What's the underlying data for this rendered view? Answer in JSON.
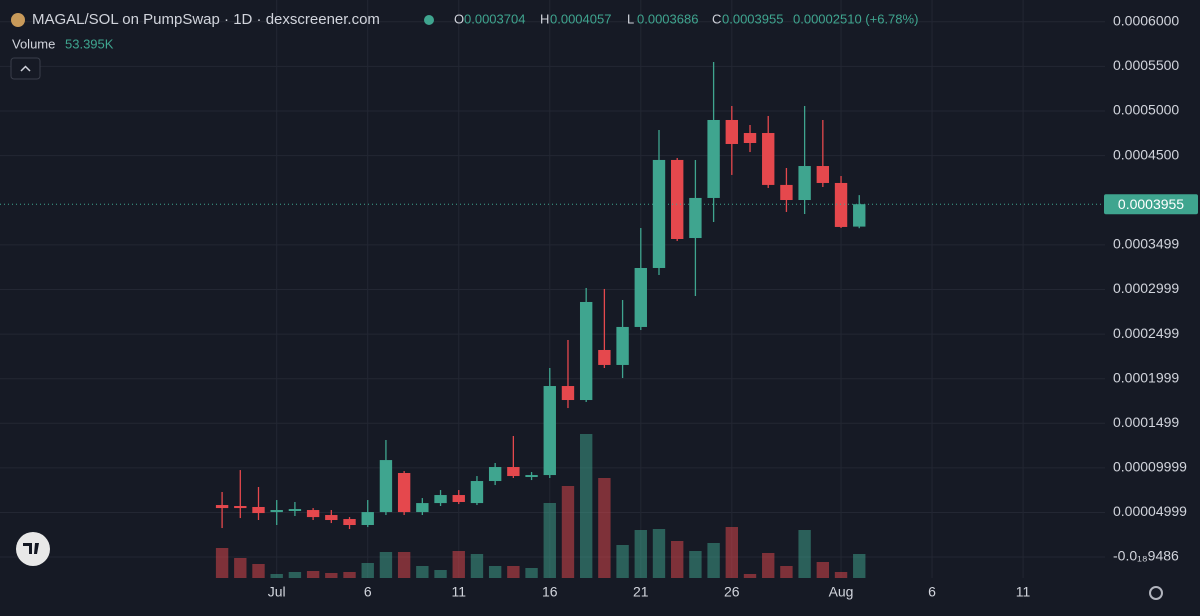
{
  "chart_data": {
    "type": "candlestick",
    "title": "MAGAL/SOL on PumpSwap · 1D · dexscreener.com",
    "ohlc_letters": [
      "O",
      "H",
      "L",
      "C"
    ],
    "change": "0.00002510 (+6.78%)",
    "volume_legend": {
      "label": "Volume",
      "value": "53.395K"
    },
    "x": [
      -2,
      -1,
      0,
      1,
      2,
      3,
      4,
      5,
      6,
      7,
      8,
      9,
      10,
      11,
      12,
      13,
      14,
      15,
      16,
      17,
      18,
      19,
      20,
      21,
      22,
      23,
      24,
      25,
      26,
      27,
      28,
      29,
      30,
      31,
      32,
      33
    ],
    "open": [
      5.83e-05,
      5.72e-05,
      5.61e-05,
      5.04e-05,
      5.16e-05,
      5.27e-05,
      4.71e-05,
      4.26e-05,
      3.59e-05,
      5.04e-05,
      9.42e-05,
      5.04e-05,
      6.05e-05,
      6.95e-05,
      6.05e-05,
      8.52e-05,
      0.0001009,
      8.97e-05,
      9.19e-05,
      0.0001917,
      0.000176,
      0.0002321,
      0.0002153,
      0.0002579,
      0.000324,
      0.0004451,
      0.0003576,
      0.0004025,
      0.0004899,
      0.0004753,
      0.0004753,
      0.0004171,
      0.0004002,
      0.0004383,
      0.0004193,
      0.0003704
    ],
    "high": [
      7.29e-05,
      9.75e-05,
      7.85e-05,
      6.39e-05,
      6.17e-05,
      5.49e-05,
      5.27e-05,
      4.48e-05,
      6.39e-05,
      0.0001312,
      9.64e-05,
      6.61e-05,
      7.51e-05,
      7.51e-05,
      9.08e-05,
      0.0001054,
      0.0001357,
      9.53e-05,
      0.0002119,
      0.0002433,
      0.0003016,
      0.0003005,
      0.0002881,
      0.0003688,
      0.0004787,
      0.0004473,
      0.0004451,
      0.0005549,
      0.0005056,
      0.0004843,
      0.0004944,
      0.0004361,
      0.0005056,
      0.0004899,
      0.0004271,
      0.0004057
    ],
    "low": [
      3.25e-05,
      4.37e-05,
      4.15e-05,
      3.59e-05,
      4.6e-05,
      4.15e-05,
      3.81e-05,
      3.14e-05,
      3.36e-05,
      4.71e-05,
      4.71e-05,
      4.71e-05,
      5.72e-05,
      5.94e-05,
      5.83e-05,
      8.07e-05,
      8.86e-05,
      8.63e-05,
      8.86e-05,
      0.000167,
      0.0001738,
      0.0002119,
      0.0002007,
      0.0002545,
      0.0003162,
      0.0003543,
      0.0002926,
      0.0003756,
      0.0004283,
      0.000454,
      0.0004137,
      0.0003868,
      0.0003845,
      0.0004148,
      0.0003688,
      0.0003686
    ],
    "close": [
      5.49e-05,
      5.49e-05,
      4.93e-05,
      5.27e-05,
      5.38e-05,
      4.48e-05,
      4.15e-05,
      3.59e-05,
      5.04e-05,
      0.0001087,
      5.04e-05,
      6.05e-05,
      6.95e-05,
      6.17e-05,
      8.52e-05,
      0.0001009,
      9.08e-05,
      9.19e-05,
      0.0001917,
      0.000176,
      0.0002859,
      0.0002153,
      0.0002579,
      0.000324,
      0.0004451,
      0.0003565,
      0.0004025,
      0.0004899,
      0.000463,
      0.0004641,
      0.0004171,
      0.0004002,
      0.0004383,
      0.0004193,
      0.00037,
      0.0003955
    ],
    "volume": [
      66750,
      44500,
      31150,
      8900,
      13350,
      15575,
      11125,
      13350,
      33375,
      57850,
      57850,
      26700,
      17800,
      60075,
      53400,
      26700,
      26700,
      22250,
      166875,
      204700,
      320400,
      222500,
      73425,
      106800,
      109025,
      82325,
      60075,
      77875,
      113475,
      8900,
      55625,
      26700,
      106800,
      35600,
      13350,
      53395
    ],
    "up_color": "#3fa58f",
    "down_color": "#e5484d",
    "xlim": [
      -14.2,
      46.5
    ],
    "xticks": [
      {
        "value": 1,
        "label": "Jul"
      },
      6,
      11,
      16,
      21,
      26,
      {
        "value": 32,
        "label": "Aug"
      },
      {
        "value": 37,
        "label": "6"
      },
      {
        "value": 42,
        "label": "11"
      }
    ],
    "ylim": [
      -2.35e-05,
      0.0006244
    ],
    "yticks": [
      {
        "value": -9.486e-19,
        "label": "-0.0₁₈9486"
      },
      {
        "value": 4.999e-05,
        "label": "0.00004999"
      },
      {
        "value": 9.999e-05,
        "label": "0.00009999"
      },
      {
        "value": 0.0001499,
        "label": "0.0001499"
      },
      {
        "value": 0.0001999,
        "label": "0.0001999"
      },
      {
        "value": 0.0002499,
        "label": "0.0002499"
      },
      {
        "value": 0.0002999,
        "label": "0.0002999"
      },
      {
        "value": 0.0003499,
        "label": "0.0003499"
      },
      {
        "value": 0.00045,
        "label": "0.0004500"
      },
      {
        "value": 0.0005,
        "label": "0.0005000"
      },
      {
        "value": 0.00055,
        "label": "0.0005500"
      },
      {
        "value": 0.0006,
        "label": "0.0006000"
      }
    ],
    "y2lim": [
      0,
      1286000
    ],
    "grid": true
  }
}
